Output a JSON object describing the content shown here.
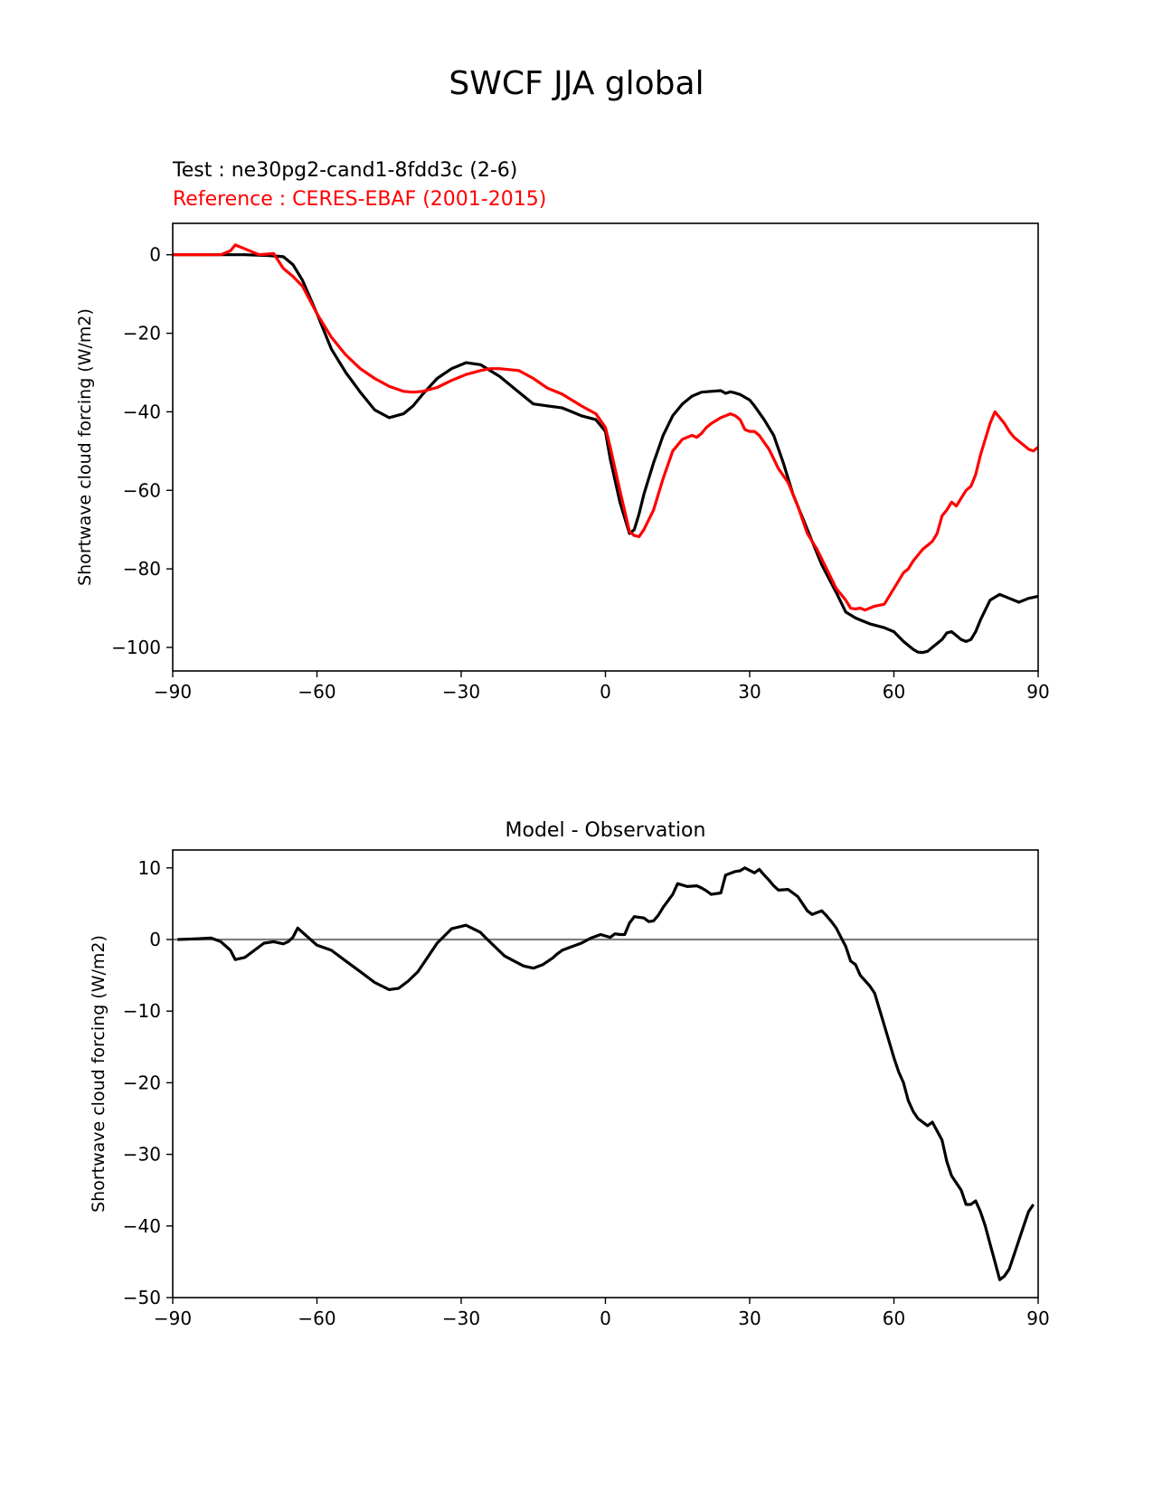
{
  "figure": {
    "title": "SWCF JJA global",
    "test_label": "Test : ne30pg2-cand1-8fdd3c (2-6)",
    "reference_label": "Reference : CERES-EBAF (2001-2015)",
    "diff_title": "Model - Observation"
  },
  "colors": {
    "test": "#000000",
    "reference": "#ff0000",
    "zero_line": "#808080"
  },
  "chart_data": [
    {
      "type": "line",
      "xlabel": "",
      "ylabel": "Shortwave cloud forcing (W/m2)",
      "xlim": [
        -90,
        90
      ],
      "ylim": [
        -106,
        8
      ],
      "xticks": [
        -90,
        -60,
        -30,
        0,
        30,
        60,
        90
      ],
      "xtick_labels": [
        "−90",
        "−60",
        "−30",
        "0",
        "30",
        "60",
        "90"
      ],
      "yticks": [
        0,
        -20,
        -40,
        -60,
        -80,
        -100
      ],
      "ytick_labels": [
        "0",
        "−20",
        "−40",
        "−60",
        "−80",
        "−100"
      ],
      "series": [
        {
          "x": [
            -90,
            -85,
            -80,
            -75,
            -70,
            -67,
            -65,
            -63,
            -60,
            -57,
            -54,
            -51,
            -48,
            -45,
            -42,
            -40,
            -38,
            -35,
            -32,
            -29,
            -26,
            -24,
            -22,
            -18,
            -15,
            -12,
            -9,
            -7,
            -5,
            -2,
            0,
            1,
            3,
            5,
            6,
            7,
            8,
            10,
            12,
            14,
            16,
            18,
            20,
            22,
            24,
            25,
            26,
            27,
            28,
            30,
            31,
            33,
            35,
            37,
            39,
            41,
            43,
            45,
            48,
            50,
            52,
            53,
            55,
            58,
            60,
            62,
            64,
            65,
            66,
            67,
            68,
            70,
            71,
            72,
            73,
            74,
            75,
            76,
            77,
            78,
            80,
            82,
            84,
            86,
            88,
            90
          ],
          "y": [
            0,
            0,
            0,
            0,
            -0.2,
            -0.5,
            -2.5,
            -6.5,
            -15,
            -24,
            -30,
            -35,
            -39.5,
            -41.5,
            -40.5,
            -38.5,
            -35.5,
            -31.5,
            -29,
            -27.5,
            -28,
            -29.5,
            -31,
            -35,
            -38,
            -38.5,
            -39,
            -40,
            -41,
            -42,
            -45,
            -52,
            -63,
            -71,
            -70,
            -66,
            -61,
            -53,
            -46,
            -41,
            -38,
            -36,
            -35,
            -34.8,
            -34.6,
            -35.3,
            -34.9,
            -35.2,
            -35.6,
            -37,
            -38.5,
            -42,
            -46,
            -53,
            -61,
            -67,
            -73,
            -79,
            -86,
            -91,
            -92.5,
            -93,
            -94,
            -95,
            -96,
            -98.5,
            -100.5,
            -101.2,
            -101.3,
            -101,
            -100,
            -98,
            -96.3,
            -96,
            -97,
            -98,
            -98.5,
            -98,
            -96,
            -93,
            -88,
            -86.5,
            -87.5,
            -88.5,
            -87.5,
            -87
          ]
        },
        {
          "x": [
            -90,
            -85,
            -80,
            -78,
            -77,
            -75,
            -72,
            -69,
            -67,
            -65,
            -63,
            -60,
            -57,
            -54,
            -51,
            -48,
            -45,
            -42,
            -40,
            -38,
            -35,
            -32,
            -29,
            -26,
            -24,
            -22,
            -18,
            -15,
            -12,
            -9,
            -7,
            -5,
            -2,
            0,
            1,
            3,
            5,
            6,
            7,
            8,
            10,
            12,
            14,
            16,
            18,
            19,
            20,
            21,
            22,
            24,
            25,
            26,
            27,
            28,
            29,
            30,
            31,
            32,
            34,
            35,
            36,
            38,
            40,
            42,
            44,
            46,
            48,
            50,
            51,
            52,
            53,
            54,
            55,
            56,
            58,
            60,
            62,
            63,
            64,
            65,
            66,
            67,
            68,
            69,
            70,
            71,
            72,
            73,
            74,
            75,
            76,
            77,
            78,
            79,
            80,
            81,
            82,
            83,
            84,
            85,
            86,
            87,
            88,
            89,
            90
          ],
          "y": [
            0,
            0,
            0,
            1,
            2.5,
            1.5,
            0,
            0.3,
            -3.5,
            -5.5,
            -8,
            -15,
            -21,
            -25.5,
            -29,
            -31.5,
            -33.5,
            -34.8,
            -35,
            -34.8,
            -33.8,
            -32,
            -30.5,
            -29.5,
            -29,
            -29,
            -29.5,
            -31.5,
            -34,
            -35.5,
            -37,
            -38.5,
            -40.5,
            -44,
            -49,
            -60,
            -70.5,
            -71.5,
            -71.8,
            -70,
            -65,
            -57,
            -50,
            -47,
            -46,
            -46.5,
            -45.5,
            -44,
            -43,
            -41.5,
            -41,
            -40.5,
            -41,
            -42,
            -44.5,
            -45,
            -45,
            -46,
            -49.5,
            -52,
            -54.5,
            -58,
            -64,
            -71,
            -75,
            -80,
            -85,
            -88,
            -90,
            -90.2,
            -90,
            -90.5,
            -90,
            -89.5,
            -89,
            -85,
            -81,
            -80,
            -78,
            -76.5,
            -75,
            -74,
            -73,
            -71,
            -66.5,
            -65,
            -63,
            -64,
            -62,
            -60,
            -59,
            -56,
            -51,
            -47,
            -43,
            -40,
            -41.5,
            -43,
            -45,
            -46.5,
            -47.5,
            -48.5,
            -49.5,
            -50,
            -49
          ]
        }
      ]
    },
    {
      "type": "line",
      "title": "Model - Observation",
      "xlabel": "",
      "ylabel": "Shortwave cloud forcing (W/m2)",
      "xlim": [
        -90,
        90
      ],
      "ylim": [
        -50,
        12.5
      ],
      "xticks": [
        -90,
        -60,
        -30,
        0,
        30,
        60,
        90
      ],
      "xtick_labels": [
        "−90",
        "−60",
        "−30",
        "0",
        "30",
        "60",
        "90"
      ],
      "yticks": [
        10,
        0,
        -10,
        -20,
        -30,
        -40,
        -50
      ],
      "ytick_labels": [
        "10",
        "0",
        "−10",
        "−20",
        "−30",
        "−40",
        "−50"
      ],
      "zero_line": 0,
      "series": [
        {
          "x": [
            -89,
            -85,
            -82,
            -80,
            -78,
            -77,
            -75,
            -73,
            -71,
            -69,
            -67,
            -66,
            -65,
            -64,
            -63,
            -60,
            -57,
            -54,
            -51,
            -48,
            -45,
            -43,
            -42,
            -41,
            -39,
            -37,
            -35,
            -32,
            -29,
            -26,
            -25,
            -23,
            -21,
            -19,
            -17,
            -15,
            -13,
            -11,
            -10,
            -9,
            -7,
            -5,
            -3,
            -1,
            1,
            2,
            3,
            4,
            5,
            6,
            8,
            9,
            10,
            11,
            12,
            14,
            15,
            17,
            19,
            20,
            21,
            22,
            24,
            25,
            27,
            28,
            29,
            31,
            32,
            33,
            34,
            35,
            36,
            38,
            40,
            42,
            43,
            45,
            46,
            47,
            48,
            50,
            51,
            52,
            53,
            55,
            56,
            58,
            60,
            61,
            62,
            63,
            64,
            65,
            66,
            67,
            68,
            70,
            71,
            72,
            73,
            74,
            75,
            76,
            77,
            78,
            79,
            80,
            81,
            82,
            83,
            84,
            85,
            86,
            87,
            88,
            89
          ],
          "y": [
            0,
            0.1,
            0.2,
            -0.3,
            -1.5,
            -2.8,
            -2.5,
            -1.5,
            -0.5,
            -0.3,
            -0.6,
            -0.3,
            0.3,
            1.6,
            1.0,
            -0.8,
            -1.5,
            -3,
            -4.5,
            -6,
            -7,
            -6.8,
            -6.3,
            -5.8,
            -4.5,
            -2.5,
            -0.5,
            1.5,
            2.0,
            1.0,
            0.3,
            -1.0,
            -2.3,
            -3,
            -3.7,
            -4.0,
            -3.5,
            -2.6,
            -2.0,
            -1.5,
            -1.0,
            -0.5,
            0.2,
            0.7,
            0.3,
            0.8,
            0.7,
            0.7,
            2.3,
            3.2,
            3,
            2.5,
            2.6,
            3.4,
            4.5,
            6.3,
            7.8,
            7.4,
            7.5,
            7.2,
            6.8,
            6.3,
            6.5,
            9,
            9.5,
            9.6,
            10,
            9.3,
            9.8,
            9.0,
            8.3,
            7.5,
            6.9,
            7.0,
            6.0,
            4.0,
            3.5,
            4.0,
            3.3,
            2.5,
            1.6,
            -1.0,
            -3,
            -3.5,
            -5,
            -6.5,
            -7.5,
            -12,
            -16.5,
            -18.5,
            -20,
            -22.5,
            -24,
            -25,
            -25.5,
            -26,
            -25.5,
            -28,
            -31,
            -33,
            -34,
            -35,
            -37,
            -37,
            -36.5,
            -38,
            -40,
            -42.5,
            -45,
            -47.5,
            -47,
            -46,
            -44,
            -42,
            -40,
            -38,
            -37
          ]
        }
      ]
    }
  ]
}
